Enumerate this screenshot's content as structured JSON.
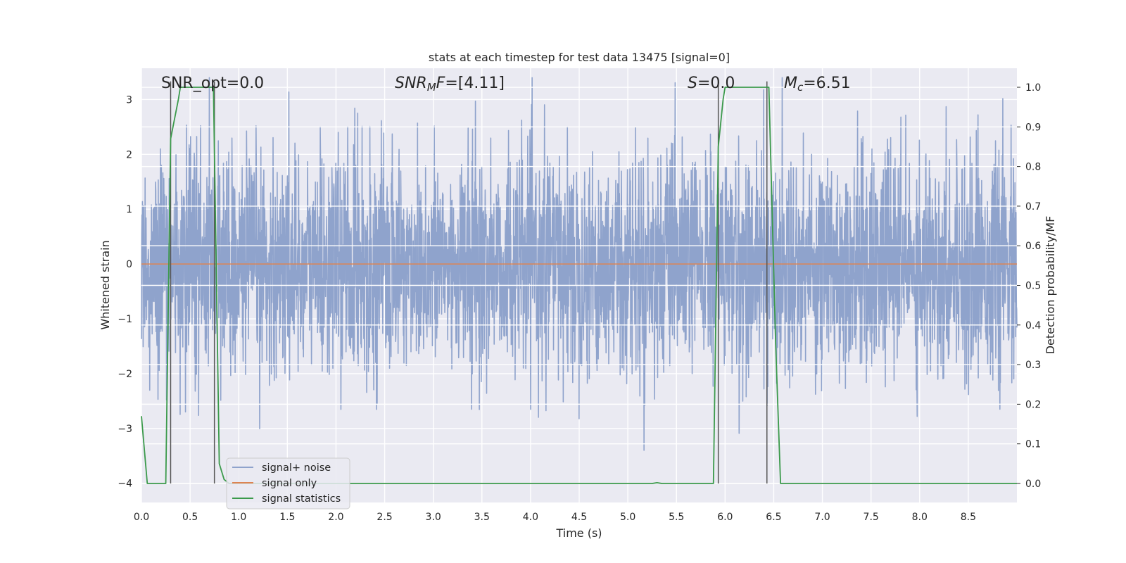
{
  "chart_data": {
    "type": "line",
    "title": "stats at each timestep for test data 13475 [signal=0]",
    "xlabel": "Time (s)",
    "ylabel": "Whitened strain",
    "y2label": "Detection probability/MF",
    "xlim": [
      0.0,
      9.0
    ],
    "ylim": [
      -4.35,
      3.57
    ],
    "y2lim": [
      -0.048,
      1.048
    ],
    "xticks": [
      0.0,
      0.5,
      1.0,
      1.5,
      2.0,
      2.5,
      3.0,
      3.5,
      4.0,
      4.5,
      5.0,
      5.5,
      6.0,
      6.5,
      7.0,
      7.5,
      8.0,
      8.5
    ],
    "xtick_labels": [
      "0.0",
      "0.5",
      "1.0",
      "1.5",
      "2.0",
      "2.5",
      "3.0",
      "3.5",
      "4.0",
      "4.5",
      "5.0",
      "5.5",
      "6.0",
      "6.5",
      "7.0",
      "7.5",
      "8.0",
      "8.5"
    ],
    "yticks": [
      -4,
      -3,
      -2,
      -1,
      0,
      1,
      2,
      3
    ],
    "ytick_labels": [
      "−4",
      "−3",
      "−2",
      "−1",
      "0",
      "1",
      "2",
      "3"
    ],
    "y2ticks": [
      0.0,
      0.1,
      0.2,
      0.3,
      0.4,
      0.5,
      0.6,
      0.7,
      0.8,
      0.9,
      1.0
    ],
    "y2tick_labels": [
      "0.0",
      "0.1",
      "0.2",
      "0.3",
      "0.4",
      "0.5",
      "0.6",
      "0.7",
      "0.8",
      "0.9",
      "1.0"
    ],
    "grid": true,
    "legend": {
      "location": "lower-left",
      "entries": [
        {
          "label": "signal+ noise",
          "color": "#8fa3cc"
        },
        {
          "label": "signal only",
          "color": "#dd8452"
        },
        {
          "label": "signal statistics",
          "color": "#3b9a4b"
        }
      ]
    },
    "annotations": [
      {
        "id": "snr-opt",
        "parts": [
          {
            "t": "SNR_opt=0.0",
            "s": "n"
          }
        ]
      },
      {
        "id": "snr-mf",
        "parts": [
          {
            "t": "SNR",
            "s": "i"
          },
          {
            "t": "M",
            "s": "isub"
          },
          {
            "t": "F",
            "s": "i"
          },
          {
            "t": "=[4.11]",
            "s": "n"
          }
        ]
      },
      {
        "id": "stat",
        "parts": [
          {
            "t": "S",
            "s": "i"
          },
          {
            "t": "=0.0",
            "s": "n"
          }
        ]
      },
      {
        "id": "mc",
        "parts": [
          {
            "t": "M",
            "s": "i"
          },
          {
            "t": "c",
            "s": "isub"
          },
          {
            "t": "=6.51",
            "s": "n"
          }
        ]
      }
    ],
    "series": [
      {
        "name": "signal+ noise",
        "color": "#8fa3cc",
        "sampling": {
          "t_start": 0.0,
          "t_end": 9.0,
          "n": 3600,
          "sigma": 1.0
        },
        "note": "dense noise trace, values approx. between -3.8 and 3.4"
      },
      {
        "name": "signal only",
        "color": "#dd8452",
        "x": [
          0.0,
          9.0
        ],
        "y": [
          0.0,
          0.0
        ]
      },
      {
        "name": "signal statistics",
        "color": "#3b9a4b",
        "axis": "right",
        "x": [
          0.0,
          0.06,
          0.25,
          0.3,
          0.38,
          0.4,
          0.5,
          0.6,
          0.7,
          0.74,
          0.8,
          0.85,
          0.9,
          1.0,
          2.0,
          3.0,
          4.0,
          5.0,
          5.25,
          5.3,
          5.35,
          5.6,
          5.88,
          5.93,
          5.98,
          6.0,
          6.2,
          6.35,
          6.45,
          6.52,
          6.57,
          7.0,
          8.0,
          9.0
        ],
        "y": [
          0.17,
          0.0,
          0.0,
          0.87,
          0.97,
          1.0,
          1.0,
          1.0,
          1.0,
          1.0,
          0.05,
          0.01,
          0.0,
          0.0,
          0.0,
          0.0,
          0.0,
          0.0,
          0.0,
          0.002,
          0.0,
          0.0,
          0.0,
          0.85,
          0.97,
          1.0,
          1.0,
          1.0,
          1.0,
          0.35,
          0.0,
          0.0,
          0.0,
          0.0
        ]
      },
      {
        "name": "markers",
        "color": "#555555",
        "vlines_x": [
          0.3,
          0.75,
          5.93,
          6.43
        ]
      }
    ]
  }
}
